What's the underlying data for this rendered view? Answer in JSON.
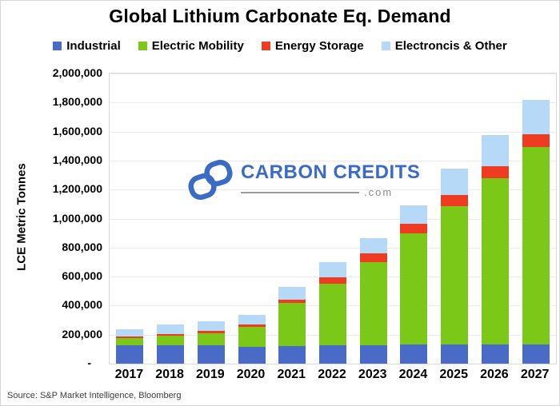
{
  "title": "Global Lithium Carbonate Eq. Demand",
  "source": "Source: S&P Market Intelligence, Bloomberg",
  "watermark": {
    "brand": "CARBON CREDITS",
    "domain": ".com"
  },
  "colors": {
    "industrial": "#4a6ac8",
    "electric_mobility": "#7cc818",
    "energy_storage": "#ee3c23",
    "electronics_other": "#b5d9f6",
    "gridline": "#ebebeb",
    "plot_border": "#d9d9d9",
    "watermark_blue": "#3a6bc5",
    "watermark_gray": "#8a8a8a"
  },
  "chart_data": {
    "type": "bar",
    "stacked": true,
    "title": "Global Lithium Carbonate Eq. Demand",
    "xlabel": "",
    "ylabel": "LCE Metric Tonnes",
    "ylim": [
      0,
      2000000
    ],
    "ytick_interval": 200000,
    "ytick_labels": [
      "-",
      "200,000",
      "400,000",
      "600,000",
      "800,000",
      "1,000,000",
      "1,200,000",
      "1,400,000",
      "1,600,000",
      "1,800,000",
      "2,000,000"
    ],
    "grid": true,
    "legend_position": "top",
    "categories": [
      "2017",
      "2018",
      "2019",
      "2020",
      "2021",
      "2022",
      "2023",
      "2024",
      "2025",
      "2026",
      "2027"
    ],
    "series": [
      {
        "name": "Industrial",
        "color": "#4a6ac8",
        "values": [
          125000,
          125000,
          128000,
          117000,
          124000,
          127000,
          129000,
          130000,
          131000,
          132000,
          133000
        ]
      },
      {
        "name": "Electric Mobility",
        "color": "#7cc818",
        "values": [
          50000,
          68000,
          82000,
          136000,
          293000,
          424000,
          570000,
          768000,
          954000,
          1148000,
          1358000
        ]
      },
      {
        "name": "Energy Storage",
        "color": "#ee3c23",
        "values": [
          11000,
          13000,
          14000,
          15000,
          22000,
          45000,
          60000,
          64000,
          78000,
          80000,
          88000
        ]
      },
      {
        "name": "Electroncis & Other",
        "color": "#b5d9f6",
        "values": [
          50000,
          66000,
          70000,
          70000,
          88000,
          105000,
          107000,
          128000,
          180000,
          215000,
          240000
        ]
      }
    ]
  }
}
